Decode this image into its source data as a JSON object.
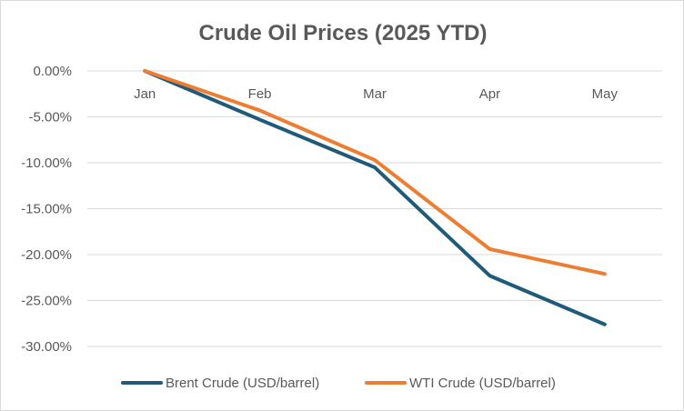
{
  "chart_data": {
    "type": "line",
    "title": "Crude Oil Prices (2025 YTD)",
    "xlabel": "",
    "ylabel": "",
    "categories": [
      "Jan",
      "Feb",
      "Mar",
      "Apr",
      "May"
    ],
    "y_ticks": [
      "0.00%",
      "-5.00%",
      "-10.00%",
      "-15.00%",
      "-20.00%",
      "-25.00%",
      "-30.00%"
    ],
    "ylim": [
      -30,
      0
    ],
    "y_unit": "%",
    "grid": true,
    "legend_position": "bottom",
    "series": [
      {
        "name": "Brent Crude (USD/barrel)",
        "color": "#1f5a7a",
        "values": [
          0,
          -5.3,
          -10.5,
          -22.3,
          -27.6
        ]
      },
      {
        "name": "WTI Crude (USD/barrel)",
        "color": "#ed7d31",
        "values": [
          0,
          -4.3,
          -9.7,
          -19.4,
          -22.1
        ]
      }
    ]
  }
}
